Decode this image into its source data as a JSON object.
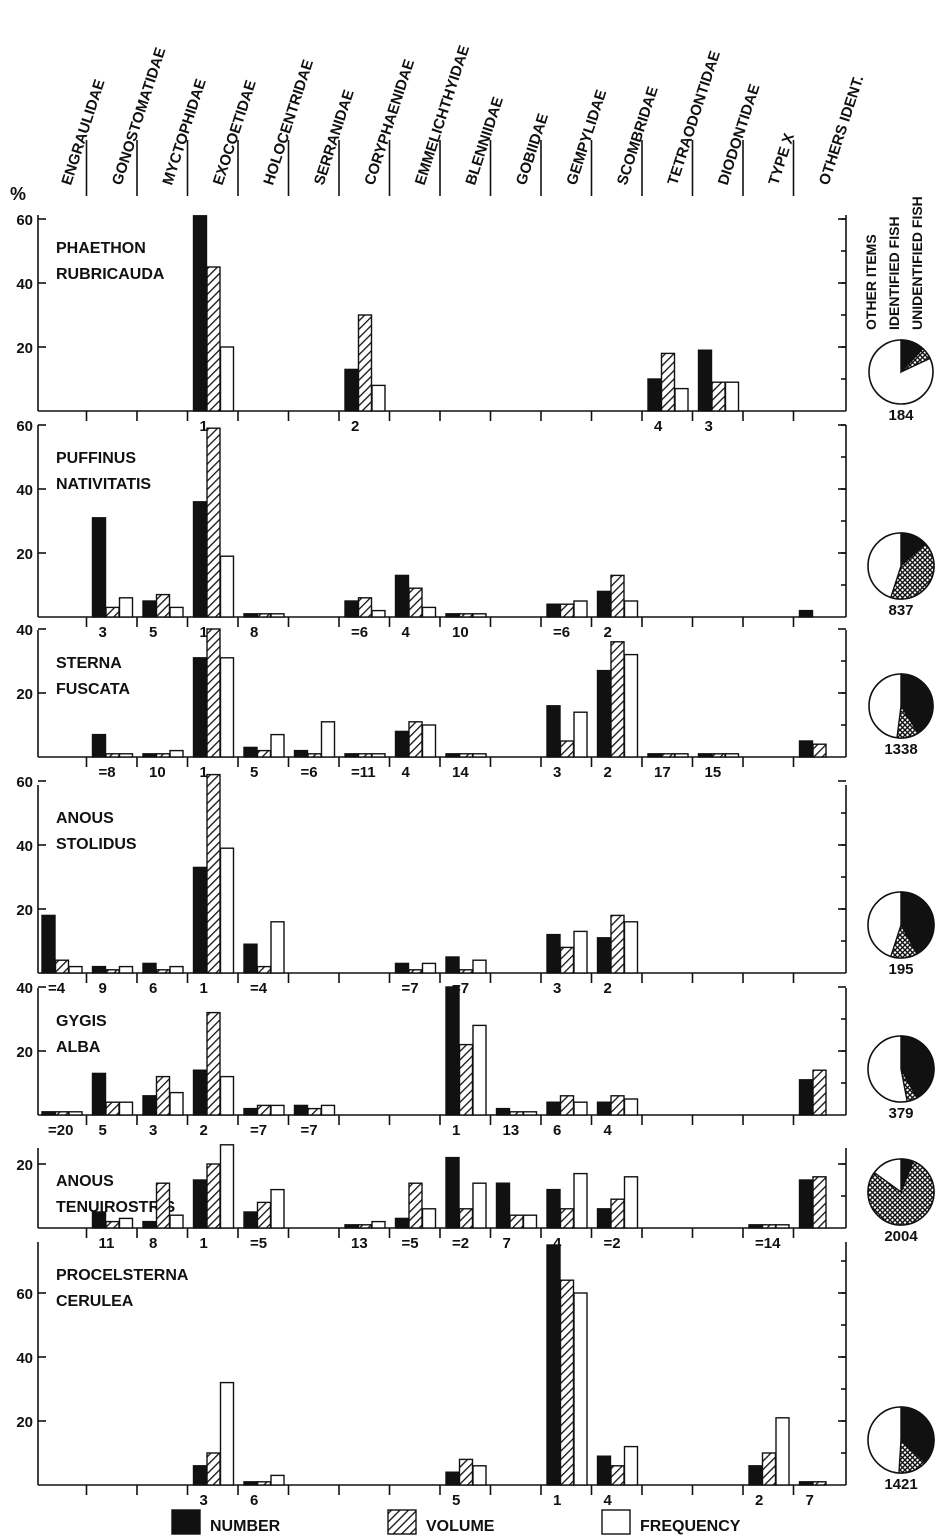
{
  "chart_data": {
    "type": "bar",
    "y_unit_label": "%",
    "categories": [
      "ENGRAULIDAE",
      "GONOSTOMATIDAE",
      "MYCTOPHIDAE",
      "EXOCOETIDAE",
      "HOLOCENTRIDAE",
      "SERRANIDAE",
      "CORYPHAENIDAE",
      "EMMELICHTHYIDAE",
      "BLENNIIDAE",
      "GOBIIDAE",
      "GEMPYLIDAE",
      "SCOMBRIDAE",
      "TETRAODONTIDAE",
      "DIODONTIDAE",
      "TYPE X",
      "OTHERS IDENT."
    ],
    "series": [
      {
        "name": "NUMBER",
        "color": "#111111",
        "pattern": "solid"
      },
      {
        "name": "VOLUME",
        "color": "#111111",
        "pattern": "diagonal-hatch"
      },
      {
        "name": "FREQUENCY",
        "color": "#ffffff",
        "pattern": "open"
      }
    ],
    "pie_legend": [
      "OTHER ITEMS",
      "IDENTIFIED FISH",
      "UNIDENTIFIED FISH"
    ],
    "panels": [
      {
        "species": [
          "PHAETHON",
          "RUBRICAUDA"
        ],
        "ylim": [
          0,
          60
        ],
        "yticks": [
          "60",
          "40",
          "20"
        ],
        "values": [
          null,
          null,
          null,
          [
            61,
            45,
            20
          ],
          null,
          null,
          [
            13,
            30,
            8
          ],
          null,
          null,
          null,
          null,
          null,
          [
            10,
            18,
            7
          ],
          [
            19,
            9,
            9
          ],
          null,
          null
        ],
        "ranks": [
          "",
          "",
          "",
          "1",
          "",
          "",
          "2",
          "",
          "",
          "",
          "",
          "",
          "4",
          "3",
          "",
          ""
        ],
        "pie": {
          "n": "184",
          "unidentified": 0.06,
          "identified": 0.12
        }
      },
      {
        "species": [
          "PUFFINUS",
          "NATIVITATIS"
        ],
        "ylim": [
          0,
          60
        ],
        "yticks": [
          "60",
          "40",
          "20"
        ],
        "values": [
          null,
          [
            31,
            3,
            6
          ],
          [
            5,
            7,
            3
          ],
          [
            36,
            59,
            19
          ],
          [
            1,
            1,
            1
          ],
          null,
          [
            5,
            6,
            2
          ],
          [
            13,
            9,
            3
          ],
          [
            1,
            1,
            1
          ],
          null,
          [
            4,
            4,
            5
          ],
          [
            8,
            13,
            5
          ],
          null,
          null,
          null,
          [
            2,
            0,
            0
          ]
        ],
        "ranks": [
          "",
          "3",
          "5",
          "1",
          "8",
          "",
          "=6",
          "4",
          "10",
          "",
          "=6",
          "2",
          "",
          "",
          "",
          ""
        ],
        "pie": {
          "n": "837",
          "unidentified": 0.42,
          "identified": 0.13
        }
      },
      {
        "species": [
          "STERNA",
          "FUSCATA"
        ],
        "ylim": [
          0,
          40
        ],
        "yticks": [
          "40",
          "20"
        ],
        "values": [
          null,
          [
            7,
            1,
            1
          ],
          [
            1,
            1,
            2
          ],
          [
            31,
            40,
            31
          ],
          [
            3,
            2,
            7
          ],
          [
            2,
            1,
            11
          ],
          [
            1,
            1,
            1
          ],
          [
            8,
            11,
            10
          ],
          [
            1,
            1,
            1
          ],
          null,
          [
            16,
            5,
            14
          ],
          [
            27,
            36,
            32
          ],
          [
            1,
            1,
            1
          ],
          [
            1,
            1,
            1
          ],
          null,
          [
            5,
            4,
            0
          ]
        ],
        "ranks": [
          "",
          "=8",
          "10",
          "1",
          "5",
          "=6",
          "=11",
          "4",
          "14",
          "",
          "3",
          "2",
          "17",
          "15",
          "",
          ""
        ],
        "pie": {
          "n": "1338",
          "unidentified": 0.11,
          "identified": 0.41
        }
      },
      {
        "species": [
          "ANOUS",
          "STOLIDUS"
        ],
        "ylim": [
          0,
          60
        ],
        "yticks": [
          "60",
          "40",
          "20"
        ],
        "values": [
          [
            18,
            4,
            2
          ],
          [
            2,
            1,
            2
          ],
          [
            3,
            1,
            2
          ],
          [
            33,
            62,
            39
          ],
          [
            9,
            2,
            16
          ],
          null,
          null,
          [
            3,
            1,
            3
          ],
          [
            5,
            1,
            4
          ],
          null,
          [
            12,
            8,
            13
          ],
          [
            11,
            18,
            16
          ],
          null,
          null,
          null,
          null
        ],
        "ranks": [
          "=4",
          "9",
          "6",
          "1",
          "=4",
          "",
          "",
          "=7",
          "=7",
          "",
          "3",
          "2",
          "",
          "",
          "",
          ""
        ],
        "pie": {
          "n": "195",
          "unidentified": 0.13,
          "identified": 0.42
        }
      },
      {
        "species": [
          "GYGIS",
          "ALBA"
        ],
        "ylim": [
          0,
          40
        ],
        "yticks": [
          "40",
          "20"
        ],
        "values": [
          [
            1,
            1,
            1
          ],
          [
            13,
            4,
            4
          ],
          [
            6,
            12,
            7
          ],
          [
            14,
            32,
            12
          ],
          [
            2,
            3,
            3
          ],
          [
            3,
            2,
            3
          ],
          null,
          null,
          [
            40,
            22,
            28
          ],
          [
            2,
            1,
            1
          ],
          [
            4,
            6,
            4
          ],
          [
            4,
            6,
            5
          ],
          null,
          null,
          null,
          [
            11,
            14,
            0
          ]
        ],
        "ranks": [
          "=20",
          "5",
          "3",
          "2",
          "=7",
          "=7",
          "",
          "",
          "1",
          "13",
          "6",
          "4",
          "",
          "",
          "",
          ""
        ],
        "pie": {
          "n": "379",
          "unidentified": 0.05,
          "identified": 0.42
        }
      },
      {
        "species": [
          "ANOUS",
          "TENUIROSTRIS"
        ],
        "ylim": [
          0,
          25
        ],
        "yticks": [
          "20"
        ],
        "values": [
          null,
          [
            5,
            2,
            3
          ],
          [
            2,
            14,
            4
          ],
          [
            15,
            20,
            26
          ],
          [
            5,
            8,
            12
          ],
          null,
          [
            1,
            1,
            2
          ],
          [
            3,
            14,
            6
          ],
          [
            22,
            6,
            14
          ],
          [
            14,
            4,
            4
          ],
          [
            12,
            6,
            17
          ],
          [
            6,
            9,
            16
          ],
          null,
          null,
          [
            1,
            1,
            1
          ],
          [
            15,
            16,
            0
          ]
        ],
        "ranks": [
          "",
          "11",
          "8",
          "1",
          "=5",
          "",
          "13",
          "=5",
          "=2",
          "7",
          "4",
          "=2",
          "",
          "",
          "=14",
          ""
        ],
        "pie": {
          "n": "2004",
          "unidentified": 0.79,
          "identified": 0.06
        }
      },
      {
        "species": [
          "PROCELSTERNA",
          "CERULEA"
        ],
        "ylim": [
          0,
          75
        ],
        "yticks": [
          "60",
          "40",
          "20"
        ],
        "values": [
          null,
          null,
          null,
          [
            6,
            10,
            32
          ],
          [
            1,
            1,
            3
          ],
          null,
          null,
          null,
          [
            4,
            8,
            6
          ],
          null,
          [
            75,
            64,
            60
          ],
          [
            9,
            6,
            12
          ],
          null,
          null,
          [
            6,
            10,
            21
          ],
          [
            1,
            1,
            0
          ]
        ],
        "ranks": [
          "",
          "",
          "",
          "3",
          "6",
          "",
          "",
          "",
          "5",
          "",
          "1",
          "4",
          "",
          "",
          "2",
          "7"
        ],
        "pie": {
          "n": "1421",
          "unidentified": 0.14,
          "identified": 0.37
        }
      }
    ]
  }
}
